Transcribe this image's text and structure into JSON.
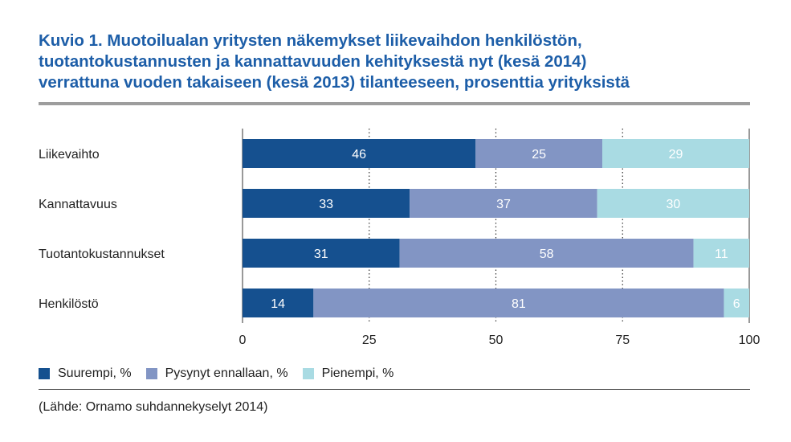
{
  "title_lines": [
    "Kuvio 1. Muotoilualan yritysten näkemykset liikevaihdon henkilöstön,",
    "tuotantokustannusten ja kannattavuuden kehityksestä nyt (kesä 2014)",
    "verrattuna vuoden takaiseen (kesä 2013) tilanteeseen, prosenttia yrityksistä"
  ],
  "source": "(Lähde: Ornamo suhdannekyselyt 2014)",
  "colors": {
    "title": "#1d5ea8",
    "series": [
      "#15508f",
      "#8295c4",
      "#a9dbe3"
    ],
    "grid": "#333333",
    "rule": "#9d9d9d"
  },
  "chart_data": {
    "type": "bar",
    "orientation": "horizontal",
    "stacked": true,
    "categories": [
      "Liikevaihto",
      "Kannattavuus",
      "Tuotantokustannukset",
      "Henkilöstö"
    ],
    "series": [
      {
        "name": "Suurempi, %",
        "values": [
          46,
          33,
          31,
          14
        ]
      },
      {
        "name": "Pysynyt ennallaan, %",
        "values": [
          25,
          37,
          58,
          81
        ]
      },
      {
        "name": "Pienempi, %",
        "values": [
          29,
          30,
          11,
          6
        ]
      }
    ],
    "xlim": [
      0,
      100
    ],
    "xticks": [
      "0",
      "25",
      "50",
      "75",
      "100"
    ],
    "grid": "dotted vertical",
    "legend_position": "bottom-left"
  }
}
